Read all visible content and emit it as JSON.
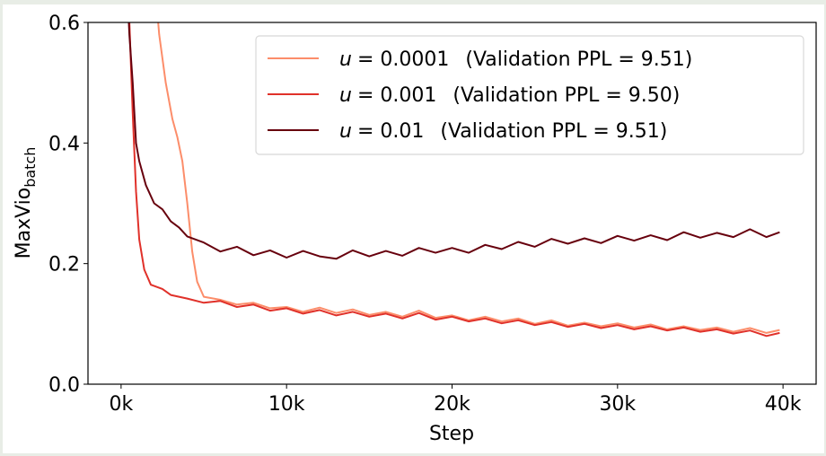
{
  "chart_data": {
    "type": "line",
    "xlabel": "Step",
    "ylabel": "MaxVio",
    "ylabel_subscript": "batch",
    "xlim": [
      -2000,
      42000
    ],
    "ylim": [
      0.0,
      0.6
    ],
    "xticks": [
      0,
      10000,
      20000,
      30000,
      40000
    ],
    "xtick_labels": [
      "0k",
      "10k",
      "20k",
      "30k",
      "40k"
    ],
    "yticks": [
      0.0,
      0.2,
      0.4,
      0.6
    ],
    "ytick_labels": [
      "0.0",
      "0.2",
      "0.4",
      "0.6"
    ],
    "grid": false,
    "legend_placement": "top-right",
    "series": [
      {
        "name": "u = 0.0001  (Validation PPL = 9.51)",
        "legend_var": "u",
        "legend_value": "= 0.0001",
        "legend_note": "(Validation PPL = 9.51)",
        "color": "#fc8d6a",
        "points": [
          [
            2000,
            0.68
          ],
          [
            2300,
            0.58
          ],
          [
            2700,
            0.5
          ],
          [
            3100,
            0.44
          ],
          [
            3400,
            0.41
          ],
          [
            3700,
            0.37
          ],
          [
            4000,
            0.3
          ],
          [
            4300,
            0.22
          ],
          [
            4600,
            0.17
          ],
          [
            5000,
            0.145
          ],
          [
            6000,
            0.14
          ],
          [
            7000,
            0.132
          ],
          [
            8000,
            0.135
          ],
          [
            9000,
            0.126
          ],
          [
            10000,
            0.128
          ],
          [
            11000,
            0.12
          ],
          [
            12000,
            0.127
          ],
          [
            13000,
            0.118
          ],
          [
            14000,
            0.124
          ],
          [
            15000,
            0.115
          ],
          [
            16000,
            0.12
          ],
          [
            17000,
            0.112
          ],
          [
            18000,
            0.122
          ],
          [
            19000,
            0.11
          ],
          [
            20000,
            0.114
          ],
          [
            21000,
            0.106
          ],
          [
            22000,
            0.112
          ],
          [
            23000,
            0.104
          ],
          [
            24000,
            0.109
          ],
          [
            25000,
            0.1
          ],
          [
            26000,
            0.106
          ],
          [
            27000,
            0.097
          ],
          [
            28000,
            0.102
          ],
          [
            29000,
            0.096
          ],
          [
            30000,
            0.101
          ],
          [
            31000,
            0.094
          ],
          [
            32000,
            0.099
          ],
          [
            33000,
            0.091
          ],
          [
            34000,
            0.096
          ],
          [
            35000,
            0.09
          ],
          [
            36000,
            0.094
          ],
          [
            37000,
            0.087
          ],
          [
            38000,
            0.093
          ],
          [
            39000,
            0.085
          ],
          [
            39800,
            0.09
          ]
        ]
      },
      {
        "name": "u = 0.001  (Validation PPL = 9.50)",
        "legend_var": "u",
        "legend_value": "= 0.001",
        "legend_note": "(Validation PPL = 9.50)",
        "color": "#e0312a",
        "points": [
          [
            300,
            0.7
          ],
          [
            500,
            0.6
          ],
          [
            700,
            0.45
          ],
          [
            900,
            0.32
          ],
          [
            1100,
            0.24
          ],
          [
            1400,
            0.19
          ],
          [
            1800,
            0.165
          ],
          [
            2500,
            0.158
          ],
          [
            3000,
            0.148
          ],
          [
            4000,
            0.142
          ],
          [
            5000,
            0.135
          ],
          [
            6000,
            0.138
          ],
          [
            7000,
            0.128
          ],
          [
            8000,
            0.132
          ],
          [
            9000,
            0.122
          ],
          [
            10000,
            0.126
          ],
          [
            11000,
            0.117
          ],
          [
            12000,
            0.123
          ],
          [
            13000,
            0.114
          ],
          [
            14000,
            0.12
          ],
          [
            15000,
            0.112
          ],
          [
            16000,
            0.117
          ],
          [
            17000,
            0.109
          ],
          [
            18000,
            0.118
          ],
          [
            19000,
            0.107
          ],
          [
            20000,
            0.112
          ],
          [
            21000,
            0.104
          ],
          [
            22000,
            0.109
          ],
          [
            23000,
            0.101
          ],
          [
            24000,
            0.106
          ],
          [
            25000,
            0.098
          ],
          [
            26000,
            0.103
          ],
          [
            27000,
            0.095
          ],
          [
            28000,
            0.1
          ],
          [
            29000,
            0.093
          ],
          [
            30000,
            0.098
          ],
          [
            31000,
            0.091
          ],
          [
            32000,
            0.096
          ],
          [
            33000,
            0.089
          ],
          [
            34000,
            0.094
          ],
          [
            35000,
            0.087
          ],
          [
            36000,
            0.091
          ],
          [
            37000,
            0.084
          ],
          [
            38000,
            0.089
          ],
          [
            39000,
            0.08
          ],
          [
            39800,
            0.085
          ]
        ]
      },
      {
        "name": "u = 0.01  (Validation PPL = 9.51)",
        "legend_var": "u",
        "legend_value": "= 0.01",
        "legend_note": "(Validation PPL = 9.51)",
        "color": "#67000d",
        "points": [
          [
            300,
            0.7
          ],
          [
            500,
            0.58
          ],
          [
            700,
            0.5
          ],
          [
            900,
            0.4
          ],
          [
            1100,
            0.37
          ],
          [
            1500,
            0.33
          ],
          [
            2000,
            0.3
          ],
          [
            2500,
            0.29
          ],
          [
            3000,
            0.27
          ],
          [
            3500,
            0.26
          ],
          [
            4000,
            0.245
          ],
          [
            5000,
            0.235
          ],
          [
            6000,
            0.22
          ],
          [
            7000,
            0.228
          ],
          [
            8000,
            0.214
          ],
          [
            9000,
            0.222
          ],
          [
            10000,
            0.21
          ],
          [
            11000,
            0.221
          ],
          [
            12000,
            0.212
          ],
          [
            13000,
            0.208
          ],
          [
            14000,
            0.222
          ],
          [
            15000,
            0.212
          ],
          [
            16000,
            0.221
          ],
          [
            17000,
            0.213
          ],
          [
            18000,
            0.226
          ],
          [
            19000,
            0.218
          ],
          [
            20000,
            0.226
          ],
          [
            21000,
            0.218
          ],
          [
            22000,
            0.231
          ],
          [
            23000,
            0.224
          ],
          [
            24000,
            0.236
          ],
          [
            25000,
            0.228
          ],
          [
            26000,
            0.241
          ],
          [
            27000,
            0.233
          ],
          [
            28000,
            0.242
          ],
          [
            29000,
            0.234
          ],
          [
            30000,
            0.246
          ],
          [
            31000,
            0.238
          ],
          [
            32000,
            0.247
          ],
          [
            33000,
            0.239
          ],
          [
            34000,
            0.252
          ],
          [
            35000,
            0.243
          ],
          [
            36000,
            0.251
          ],
          [
            37000,
            0.244
          ],
          [
            38000,
            0.257
          ],
          [
            39000,
            0.244
          ],
          [
            39800,
            0.252
          ]
        ]
      }
    ]
  }
}
